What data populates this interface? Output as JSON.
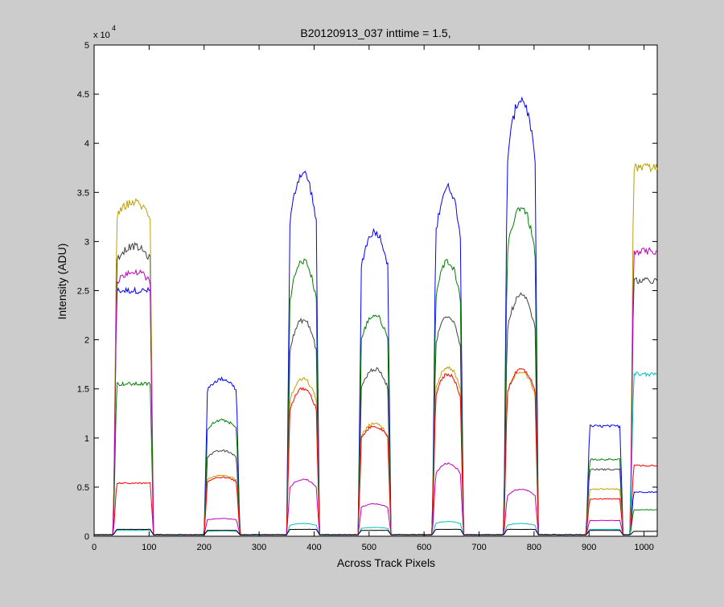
{
  "chart_data": {
    "type": "line",
    "title": "B20120913_037 inttime = 1.5,",
    "xlabel": "Across Track Pixels",
    "ylabel": "Intensity (ADU)",
    "y_multiplier_label": "x 10",
    "y_multiplier_exponent": "4",
    "xlim": [
      0,
      1024
    ],
    "ylim": [
      0,
      50000
    ],
    "grid": false,
    "x_ticks": [
      0,
      100,
      200,
      300,
      400,
      500,
      600,
      700,
      800,
      900,
      1000
    ],
    "x_tick_labels": [
      "0",
      "100",
      "200",
      "300",
      "400",
      "500",
      "600",
      "700",
      "800",
      "900",
      "1000"
    ],
    "y_ticks": [
      0,
      5000,
      10000,
      15000,
      20000,
      25000,
      30000,
      35000,
      40000,
      45000,
      50000
    ],
    "y_tick_labels": [
      "0",
      "0.5",
      "1",
      "1.5",
      "2",
      "2.5",
      "3",
      "3.5",
      "4",
      "4.5",
      "5"
    ],
    "baseline": 150,
    "segments": [
      {
        "x0": 35,
        "x1": 108
      },
      {
        "x0": 200,
        "x1": 265
      },
      {
        "x0": 350,
        "x1": 410
      },
      {
        "x0": 480,
        "x1": 540
      },
      {
        "x0": 615,
        "x1": 672
      },
      {
        "x0": 745,
        "x1": 808
      },
      {
        "x0": 895,
        "x1": 962
      },
      {
        "x0": 975,
        "x1": 1024
      }
    ],
    "series": [
      {
        "color": "#0000ff",
        "plateaus": [
          25000,
          16000,
          37000,
          31000,
          35500,
          44500,
          11200,
          4500
        ],
        "shape": [
          0,
          0.5,
          1,
          0.8,
          1,
          1,
          0,
          0
        ]
      },
      {
        "color": "#008000",
        "plateaus": [
          15500,
          11800,
          28000,
          22500,
          28000,
          33500,
          7800,
          2700
        ],
        "shape": [
          0,
          0.5,
          1,
          0.8,
          1,
          1,
          0,
          0
        ]
      },
      {
        "color": "#404040",
        "plateaus": [
          29500,
          8700,
          22000,
          17000,
          22500,
          24500,
          6800,
          26000
        ],
        "shape": [
          0.3,
          0.5,
          1,
          0.8,
          1,
          1,
          0,
          0
        ]
      },
      {
        "color": "#c0a000",
        "plateaus": [
          34000,
          6200,
          16000,
          11500,
          17200,
          16800,
          4800,
          37500
        ],
        "shape": [
          0.3,
          0.5,
          1,
          0.8,
          1,
          1,
          0,
          0
        ]
      },
      {
        "color": "#ff0000",
        "plateaus": [
          5400,
          6000,
          15000,
          11200,
          16500,
          17000,
          3800,
          7200
        ],
        "shape": [
          0,
          0.5,
          1,
          0.8,
          1,
          1,
          0,
          0
        ]
      },
      {
        "color": "#bf00bf",
        "plateaus": [
          27000,
          1800,
          5800,
          3300,
          7400,
          4800,
          1600,
          29000
        ],
        "shape": [
          0.3,
          0.5,
          1,
          0.8,
          1,
          1,
          0,
          0
        ]
      },
      {
        "color": "#00bfbf",
        "plateaus": [
          600,
          550,
          1300,
          900,
          1500,
          1300,
          700,
          16500
        ],
        "shape": [
          0,
          0.5,
          1,
          0.8,
          1,
          1,
          0,
          0
        ]
      },
      {
        "color": "#000000",
        "plateaus": [
          700,
          600,
          700,
          600,
          700,
          700,
          600,
          500
        ],
        "shape": [
          0,
          0,
          0,
          0,
          0,
          0,
          0,
          0
        ]
      }
    ]
  }
}
